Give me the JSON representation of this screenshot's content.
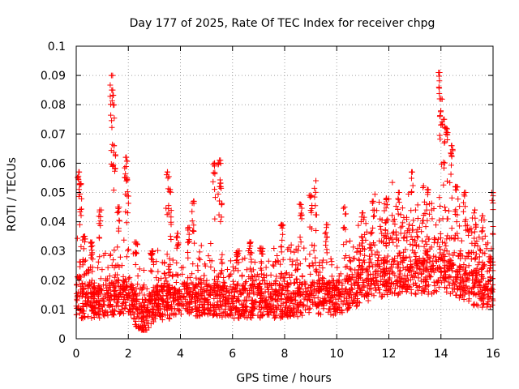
{
  "chart_data": {
    "type": "scatter",
    "title": "Day 177 of 2025, Rate Of TEC Index for receiver chpg",
    "xlabel": "GPS time / hours",
    "ylabel": "ROTI / TECUs",
    "xlim": [
      0,
      16
    ],
    "ylim": [
      0,
      0.1
    ],
    "xticks": [
      "0",
      "2",
      "4",
      "6",
      "8",
      "10",
      "12",
      "14",
      "16"
    ],
    "yticks": [
      "0",
      "0.01",
      "0.02",
      "0.03",
      "0.04",
      "0.05",
      "0.06",
      "0.07",
      "0.08",
      "0.09",
      "0.1"
    ],
    "grid": true,
    "marker": "+",
    "color": "#ff0000",
    "series": [
      {
        "name": "ROTI",
        "baseline": [
          [
            0.0,
            0.013
          ],
          [
            1.0,
            0.013
          ],
          [
            2.0,
            0.015
          ],
          [
            2.5,
            0.006
          ],
          [
            3.0,
            0.012
          ],
          [
            4.0,
            0.013
          ],
          [
            5.0,
            0.014
          ],
          [
            6.0,
            0.013
          ],
          [
            7.0,
            0.013
          ],
          [
            8.0,
            0.013
          ],
          [
            9.0,
            0.014
          ],
          [
            10.0,
            0.014
          ],
          [
            11.0,
            0.018
          ],
          [
            12.0,
            0.021
          ],
          [
            13.0,
            0.02
          ],
          [
            14.0,
            0.022
          ],
          [
            15.0,
            0.018
          ],
          [
            16.0,
            0.015
          ]
        ],
        "peaks": [
          [
            0.1,
            0.057
          ],
          [
            0.15,
            0.053
          ],
          [
            0.3,
            0.035
          ],
          [
            0.6,
            0.033
          ],
          [
            0.9,
            0.044
          ],
          [
            1.35,
            0.09
          ],
          [
            1.4,
            0.085
          ],
          [
            1.45,
            0.066
          ],
          [
            1.6,
            0.045
          ],
          [
            1.9,
            0.062
          ],
          [
            1.95,
            0.055
          ],
          [
            2.3,
            0.033
          ],
          [
            2.9,
            0.03
          ],
          [
            3.5,
            0.057
          ],
          [
            3.6,
            0.051
          ],
          [
            3.9,
            0.036
          ],
          [
            4.3,
            0.038
          ],
          [
            4.5,
            0.047
          ],
          [
            5.3,
            0.06
          ],
          [
            5.5,
            0.061
          ],
          [
            5.55,
            0.052
          ],
          [
            6.2,
            0.03
          ],
          [
            6.7,
            0.033
          ],
          [
            7.1,
            0.031
          ],
          [
            7.9,
            0.039
          ],
          [
            8.6,
            0.046
          ],
          [
            9.0,
            0.049
          ],
          [
            9.2,
            0.054
          ],
          [
            9.6,
            0.039
          ],
          [
            10.3,
            0.045
          ],
          [
            11.0,
            0.043
          ],
          [
            11.4,
            0.047
          ],
          [
            11.9,
            0.048
          ],
          [
            12.4,
            0.05
          ],
          [
            12.9,
            0.057
          ],
          [
            13.5,
            0.051
          ],
          [
            13.95,
            0.091
          ],
          [
            14.0,
            0.082
          ],
          [
            14.1,
            0.075
          ],
          [
            14.2,
            0.072
          ],
          [
            14.4,
            0.066
          ],
          [
            14.6,
            0.052
          ],
          [
            14.9,
            0.05
          ],
          [
            15.3,
            0.044
          ],
          [
            15.6,
            0.042
          ],
          [
            15.9,
            0.028
          ],
          [
            16.0,
            0.05
          ]
        ]
      }
    ]
  }
}
